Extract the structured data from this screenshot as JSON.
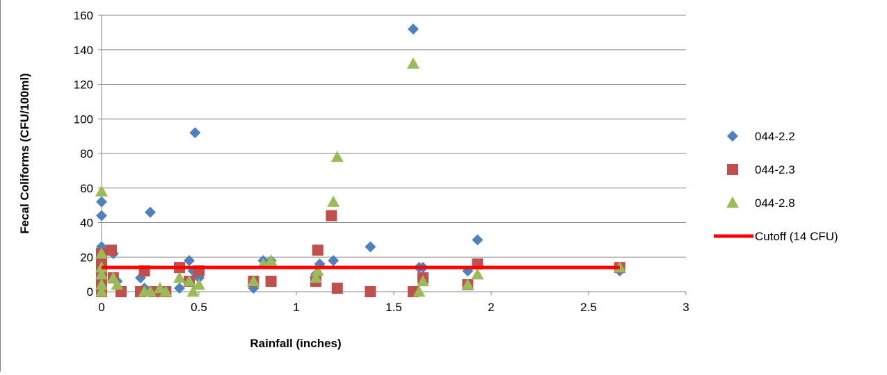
{
  "chart_data": {
    "type": "scatter",
    "xlabel": "Rainfall (inches)",
    "ylabel": "Fecal Coliforms (CFU/100ml)",
    "xlim": [
      0,
      3
    ],
    "ylim": [
      0,
      160
    ],
    "xticks": [
      0,
      0.5,
      1,
      1.5,
      2,
      2.5,
      3
    ],
    "xtick_labels": [
      "0",
      "0.5",
      "1",
      "1.5",
      "2",
      "2.5",
      "3"
    ],
    "yticks": [
      0,
      20,
      40,
      60,
      80,
      100,
      120,
      140,
      160
    ],
    "ytick_labels": [
      "0",
      "20",
      "40",
      "60",
      "80",
      "100",
      "120",
      "140",
      "160"
    ],
    "grid": "horizontal",
    "legend_position": "right",
    "series": [
      {
        "name": "044-2.2",
        "marker": "diamond",
        "color": "#4F81BD",
        "points": [
          [
            0,
            52
          ],
          [
            0,
            44
          ],
          [
            0,
            26
          ],
          [
            0,
            20
          ],
          [
            0,
            14
          ],
          [
            0,
            8
          ],
          [
            0,
            4
          ],
          [
            0,
            1
          ],
          [
            0.06,
            22
          ],
          [
            0.08,
            6
          ],
          [
            0.2,
            8
          ],
          [
            0.22,
            2
          ],
          [
            0.25,
            46
          ],
          [
            0.3,
            1
          ],
          [
            0.4,
            2
          ],
          [
            0.45,
            18
          ],
          [
            0.47,
            12
          ],
          [
            0.48,
            92
          ],
          [
            0.5,
            8
          ],
          [
            0.78,
            2
          ],
          [
            0.83,
            18
          ],
          [
            0.87,
            18
          ],
          [
            1.1,
            10
          ],
          [
            1.12,
            16
          ],
          [
            1.19,
            18
          ],
          [
            1.38,
            26
          ],
          [
            1.6,
            152
          ],
          [
            1.63,
            14
          ],
          [
            1.65,
            14
          ],
          [
            1.88,
            12
          ],
          [
            1.93,
            30
          ],
          [
            2.66,
            12
          ]
        ]
      },
      {
        "name": "044-2.3",
        "marker": "square",
        "color": "#C0504D",
        "points": [
          [
            0,
            22
          ],
          [
            0,
            18
          ],
          [
            0,
            12
          ],
          [
            0,
            6
          ],
          [
            0,
            2
          ],
          [
            0,
            0
          ],
          [
            0.05,
            24
          ],
          [
            0.06,
            8
          ],
          [
            0.1,
            0
          ],
          [
            0.2,
            0
          ],
          [
            0.22,
            12
          ],
          [
            0.27,
            0
          ],
          [
            0.33,
            0
          ],
          [
            0.4,
            14
          ],
          [
            0.45,
            6
          ],
          [
            0.5,
            12
          ],
          [
            0.78,
            6
          ],
          [
            0.87,
            6
          ],
          [
            1.1,
            6
          ],
          [
            1.11,
            24
          ],
          [
            1.18,
            44
          ],
          [
            1.21,
            2
          ],
          [
            1.38,
            0
          ],
          [
            1.6,
            0
          ],
          [
            1.65,
            8
          ],
          [
            1.88,
            4
          ],
          [
            1.93,
            16
          ],
          [
            2.66,
            14
          ]
        ]
      },
      {
        "name": "044-2.8",
        "marker": "triangle",
        "color": "#9BBB59",
        "points": [
          [
            0,
            58
          ],
          [
            0,
            22
          ],
          [
            0,
            14
          ],
          [
            0,
            10
          ],
          [
            0,
            4
          ],
          [
            0,
            0
          ],
          [
            0.06,
            8
          ],
          [
            0.08,
            4
          ],
          [
            0.22,
            0
          ],
          [
            0.25,
            0
          ],
          [
            0.3,
            2
          ],
          [
            0.33,
            0
          ],
          [
            0.4,
            8
          ],
          [
            0.45,
            6
          ],
          [
            0.47,
            0
          ],
          [
            0.5,
            4
          ],
          [
            0.78,
            6
          ],
          [
            0.83,
            16
          ],
          [
            0.87,
            18
          ],
          [
            1.1,
            8
          ],
          [
            1.11,
            12
          ],
          [
            1.19,
            52
          ],
          [
            1.21,
            78
          ],
          [
            1.6,
            132
          ],
          [
            1.63,
            0
          ],
          [
            1.65,
            6
          ],
          [
            1.88,
            4
          ],
          [
            1.93,
            10
          ],
          [
            2.66,
            14
          ]
        ]
      },
      {
        "name": "Cutoff (14 CFU)",
        "marker": "line",
        "color": "#FF0000",
        "points": [
          [
            0,
            14
          ],
          [
            2.66,
            14
          ]
        ]
      }
    ]
  }
}
